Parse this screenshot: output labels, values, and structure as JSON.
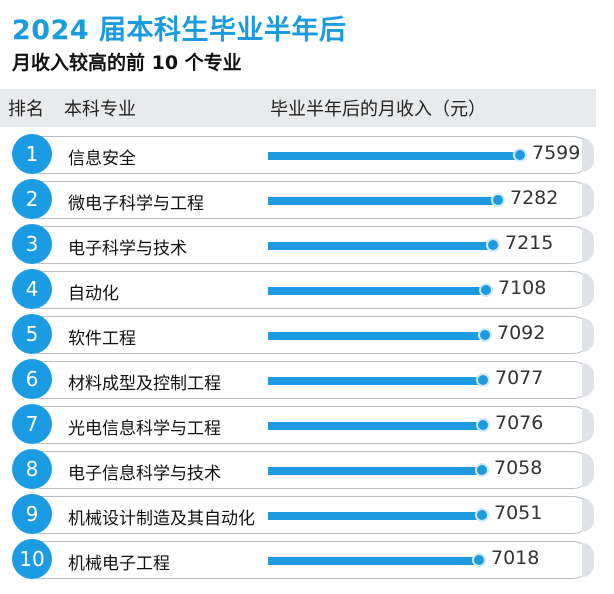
{
  "header": {
    "title": "2024 届本科生毕业半年后",
    "subtitle": "月收入较高的前 10 个专业"
  },
  "table": {
    "col_rank": "排名",
    "col_major": "本科专业",
    "col_income": "毕业半年后的月收入（元）"
  },
  "colors": {
    "accent": "#1b9be3",
    "bar": "#1d9ae0",
    "header_bg": "#e9eaec"
  },
  "chart_data": {
    "type": "bar",
    "orientation": "horizontal",
    "title": "2024 届本科生毕业半年后",
    "subtitle": "月收入较高的前 10 个专业",
    "ranks": [
      "1",
      "2",
      "3",
      "4",
      "5",
      "6",
      "7",
      "8",
      "9",
      "10"
    ],
    "categories": [
      "信息安全",
      "微电子科学与工程",
      "电子科学与技术",
      "自动化",
      "软件工程",
      "材料成型及控制工程",
      "光电信息科学与工程",
      "电子信息科学与技术",
      "机械设计制造及其自动化",
      "机械电子工程"
    ],
    "values": [
      7599,
      7282,
      7215,
      7108,
      7092,
      7077,
      7076,
      7058,
      7051,
      7018
    ],
    "value_labels": [
      "7599",
      "7282",
      "7215",
      "7108",
      "7092",
      "7077",
      "7076",
      "7058",
      "7051",
      "7018"
    ]
  }
}
